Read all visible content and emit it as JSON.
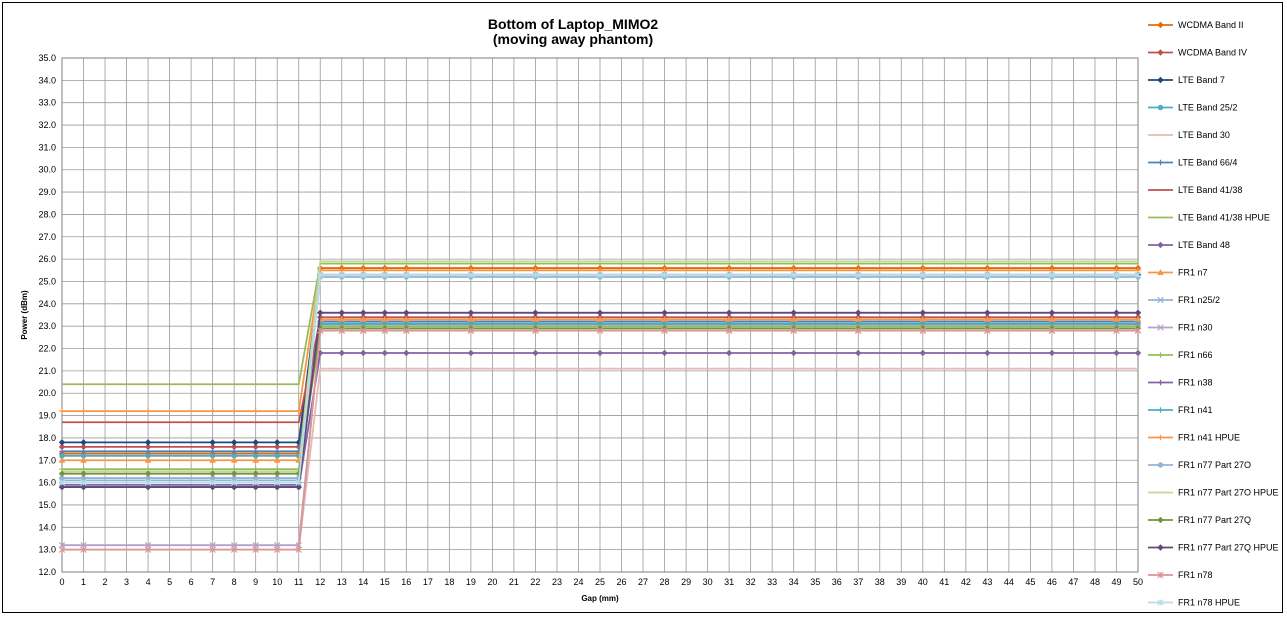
{
  "chart_data": {
    "type": "line",
    "title": "Bottom of Laptop_MIMO2",
    "subtitle": "(moving away phantom)",
    "xlabel": "Gap (mm)",
    "ylabel": "Power (dBm)",
    "ylim": [
      12,
      35
    ],
    "y_ticks": [
      "12.0",
      "13.0",
      "14.0",
      "15.0",
      "16.0",
      "17.0",
      "18.0",
      "19.0",
      "20.0",
      "21.0",
      "22.0",
      "23.0",
      "24.0",
      "25.0",
      "26.0",
      "27.0",
      "28.0",
      "29.0",
      "30.0",
      "31.0",
      "32.0",
      "33.0",
      "34.0",
      "35.0"
    ],
    "categories": [
      "0",
      "1",
      "2",
      "3",
      "4",
      "5",
      "6",
      "7",
      "8",
      "9",
      "10",
      "11",
      "12",
      "13",
      "14",
      "15",
      "16",
      "17",
      "18",
      "19",
      "20",
      "21",
      "22",
      "23",
      "24",
      "25",
      "26",
      "27",
      "28",
      "29",
      "30",
      "31",
      "32",
      "33",
      "34",
      "35",
      "36",
      "37",
      "38",
      "39",
      "40",
      "41",
      "42",
      "43",
      "44",
      "45",
      "46",
      "47",
      "48",
      "49",
      "50"
    ],
    "marker_x": [
      0,
      1,
      4,
      7,
      8,
      9,
      10,
      11,
      12,
      13,
      14,
      15,
      16,
      19,
      22,
      25,
      28,
      31,
      34,
      37,
      40,
      43,
      46,
      49,
      50
    ],
    "grid": true,
    "legend_position": "right",
    "series": [
      {
        "name": "WCDMA Band II",
        "color": "#e46c0a",
        "marker": "diamond",
        "low": 17.3,
        "high": 25.6
      },
      {
        "name": "WCDMA Band IV",
        "color": "#c0504d",
        "marker": "diamond",
        "low": 17.6,
        "high": 23.4
      },
      {
        "name": "LTE Band 7",
        "color": "#1f497d",
        "marker": "diamond",
        "low": 17.8,
        "high": 25.3
      },
      {
        "name": "LTE Band 25/2",
        "color": "#4bacc6",
        "marker": "circle",
        "low": 17.2,
        "high": 23.1
      },
      {
        "name": "LTE Band 30",
        "color": "#e6b9b8",
        "marker": "none",
        "low": 13.0,
        "high": 21.1
      },
      {
        "name": "LTE Band 66/4",
        "color": "#4f81bd",
        "marker": "plus",
        "low": 17.4,
        "high": 23.2
      },
      {
        "name": "LTE Band 41/38",
        "color": "#c0504d",
        "marker": "none",
        "low": 18.7,
        "high": 23.3
      },
      {
        "name": "LTE Band 41/38 HPUE",
        "color": "#9bbb59",
        "marker": "none",
        "low": 20.4,
        "high": 25.8
      },
      {
        "name": "LTE Band 48",
        "color": "#8064a2",
        "marker": "diamond",
        "low": 15.8,
        "high": 21.8
      },
      {
        "name": "FR1 n7",
        "color": "#f79646",
        "marker": "triangle",
        "low": 17.0,
        "high": 23.3
      },
      {
        "name": "FR1 n25/2",
        "color": "#95b3d7",
        "marker": "x",
        "low": 16.1,
        "high": 23.0
      },
      {
        "name": "FR1 n30",
        "color": "#b3a2c7",
        "marker": "x",
        "low": 13.2,
        "high": 22.8
      },
      {
        "name": "FR1 n66",
        "color": "#9bbb59",
        "marker": "plus",
        "low": 16.6,
        "high": 23.0
      },
      {
        "name": "FR1 n38",
        "color": "#8064a2",
        "marker": "plus",
        "low": 15.9,
        "high": 23.6
      },
      {
        "name": "FR1 n41",
        "color": "#4bacc6",
        "marker": "plus",
        "low": 16.2,
        "high": 23.1
      },
      {
        "name": "FR1 n41 HPUE",
        "color": "#f79646",
        "marker": "plus",
        "low": 19.2,
        "high": 25.5
      },
      {
        "name": "FR1 n77 Part 27O",
        "color": "#95b3d7",
        "marker": "circle",
        "low": 16.2,
        "high": 25.2
      },
      {
        "name": "FR1 n77 Part 27O HPUE",
        "color": "#c3d69b",
        "marker": "none",
        "low": 16.5,
        "high": 25.9
      },
      {
        "name": "FR1 n77 Part 27Q",
        "color": "#76923c",
        "marker": "diamond",
        "low": 16.4,
        "high": 22.9
      },
      {
        "name": "FR1 n77 Part 27Q HPUE",
        "color": "#5f497a",
        "marker": "diamond",
        "low": 15.8,
        "high": 23.6
      },
      {
        "name": "FR1 n78",
        "color": "#d99594",
        "marker": "star",
        "low": 13.0,
        "high": 22.8
      },
      {
        "name": "FR1 n78 HPUE",
        "color": "#b7dee8",
        "marker": "star",
        "low": 16.0,
        "high": 25.3
      }
    ]
  }
}
